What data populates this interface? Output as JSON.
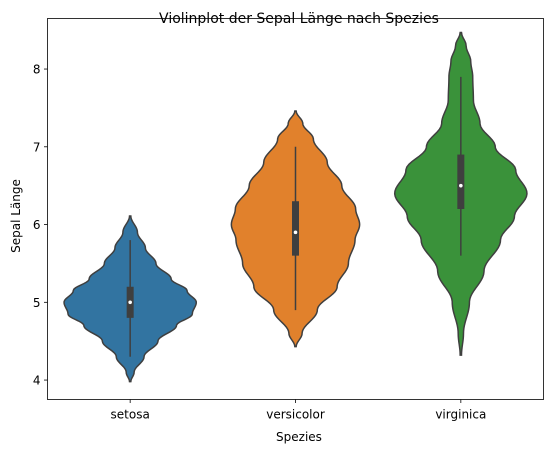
{
  "chart_data": {
    "type": "violin",
    "title": "Violinplot der Sepal Länge nach Spezies",
    "xlabel": "Spezies",
    "ylabel": "Sepal Länge",
    "categories": [
      "setosa",
      "versicolor",
      "virginica"
    ],
    "colors": [
      "#3274a1",
      "#e1812c",
      "#3a923a"
    ],
    "ylim": [
      3.75,
      8.65
    ],
    "yticks": [
      4,
      5,
      6,
      7,
      8
    ],
    "grid": false,
    "violins": [
      {
        "name": "setosa",
        "density_range": [
          3.98,
          6.11
        ],
        "density_profile": [
          [
            3.98,
            0.01
          ],
          [
            4.1,
            0.06
          ],
          [
            4.3,
            0.21
          ],
          [
            4.5,
            0.42
          ],
          [
            4.7,
            0.7
          ],
          [
            4.85,
            0.94
          ],
          [
            5.0,
            1.0
          ],
          [
            5.15,
            0.86
          ],
          [
            5.3,
            0.62
          ],
          [
            5.5,
            0.39
          ],
          [
            5.7,
            0.23
          ],
          [
            5.9,
            0.11
          ],
          [
            6.11,
            0.01
          ]
        ],
        "whisker": [
          4.3,
          5.8
        ],
        "q1": 4.8,
        "median": 5.0,
        "q3": 5.2
      },
      {
        "name": "versicolor",
        "density_range": [
          4.43,
          7.46
        ],
        "density_profile": [
          [
            4.43,
            0.01
          ],
          [
            4.6,
            0.1
          ],
          [
            4.9,
            0.33
          ],
          [
            5.2,
            0.63
          ],
          [
            5.5,
            0.8
          ],
          [
            5.8,
            0.9
          ],
          [
            6.0,
            0.97
          ],
          [
            6.2,
            0.91
          ],
          [
            6.5,
            0.7
          ],
          [
            6.8,
            0.48
          ],
          [
            7.1,
            0.27
          ],
          [
            7.3,
            0.11
          ],
          [
            7.46,
            0.01
          ]
        ],
        "whisker": [
          4.9,
          7.0
        ],
        "q1": 5.6,
        "median": 5.9,
        "q3": 6.3
      },
      {
        "name": "virginica",
        "density_range": [
          4.32,
          8.47
        ],
        "density_profile": [
          [
            4.32,
            0.01
          ],
          [
            4.6,
            0.04
          ],
          [
            5.0,
            0.13
          ],
          [
            5.4,
            0.35
          ],
          [
            5.8,
            0.6
          ],
          [
            6.1,
            0.81
          ],
          [
            6.4,
            1.0
          ],
          [
            6.7,
            0.83
          ],
          [
            7.0,
            0.52
          ],
          [
            7.3,
            0.29
          ],
          [
            7.6,
            0.19
          ],
          [
            7.9,
            0.18
          ],
          [
            8.1,
            0.15
          ],
          [
            8.3,
            0.08
          ],
          [
            8.47,
            0.01
          ]
        ],
        "whisker": [
          5.6,
          7.9
        ],
        "q1": 6.2,
        "median": 6.5,
        "q3": 6.9
      }
    ]
  }
}
